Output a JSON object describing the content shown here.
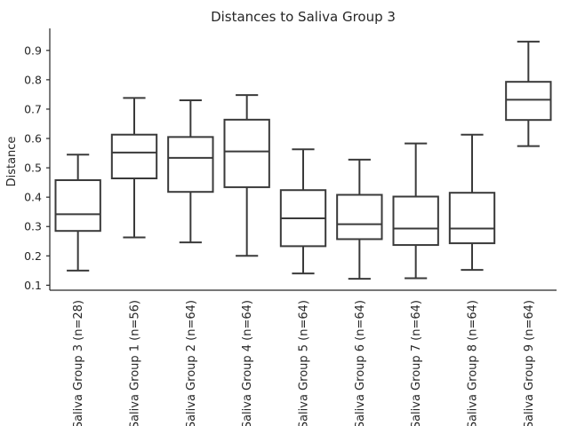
{
  "chart_data": {
    "type": "box",
    "title": "Distances to Saliva Group 3",
    "xlabel": "",
    "ylabel": "Distance",
    "ylim": [
      0.083,
      0.975
    ],
    "yticks": [
      0.1,
      0.2,
      0.3,
      0.4,
      0.5,
      0.6,
      0.7,
      0.8,
      0.9
    ],
    "grid": false,
    "colors": {
      "box_stroke": "#3a3a3a",
      "box_fill": "#ffffff",
      "axis": "#262626"
    },
    "categories": [
      "Saliva Group 3 (n=28)",
      "Saliva Group 1 (n=56)",
      "Saliva Group 2 (n=64)",
      "Saliva Group 4 (n=64)",
      "Saliva Group 5 (n=64)",
      "Saliva Group 6 (n=64)",
      "Saliva Group 7 (n=64)",
      "Saliva Group 8 (n=64)",
      "Saliva Group 9 (n=64)"
    ],
    "boxes": [
      {
        "whisker_low": 0.15,
        "q1": 0.285,
        "median": 0.342,
        "q3": 0.458,
        "whisker_high": 0.545
      },
      {
        "whisker_low": 0.263,
        "q1": 0.464,
        "median": 0.552,
        "q3": 0.613,
        "whisker_high": 0.738
      },
      {
        "whisker_low": 0.246,
        "q1": 0.418,
        "median": 0.534,
        "q3": 0.605,
        "whisker_high": 0.73
      },
      {
        "whisker_low": 0.2,
        "q1": 0.434,
        "median": 0.556,
        "q3": 0.664,
        "whisker_high": 0.748
      },
      {
        "whisker_low": 0.14,
        "q1": 0.233,
        "median": 0.328,
        "q3": 0.424,
        "whisker_high": 0.563
      },
      {
        "whisker_low": 0.122,
        "q1": 0.257,
        "median": 0.308,
        "q3": 0.408,
        "whisker_high": 0.528
      },
      {
        "whisker_low": 0.124,
        "q1": 0.237,
        "median": 0.293,
        "q3": 0.402,
        "whisker_high": 0.583
      },
      {
        "whisker_low": 0.152,
        "q1": 0.243,
        "median": 0.293,
        "q3": 0.415,
        "whisker_high": 0.613
      },
      {
        "whisker_low": 0.574,
        "q1": 0.663,
        "median": 0.732,
        "q3": 0.793,
        "whisker_high": 0.93
      }
    ]
  }
}
